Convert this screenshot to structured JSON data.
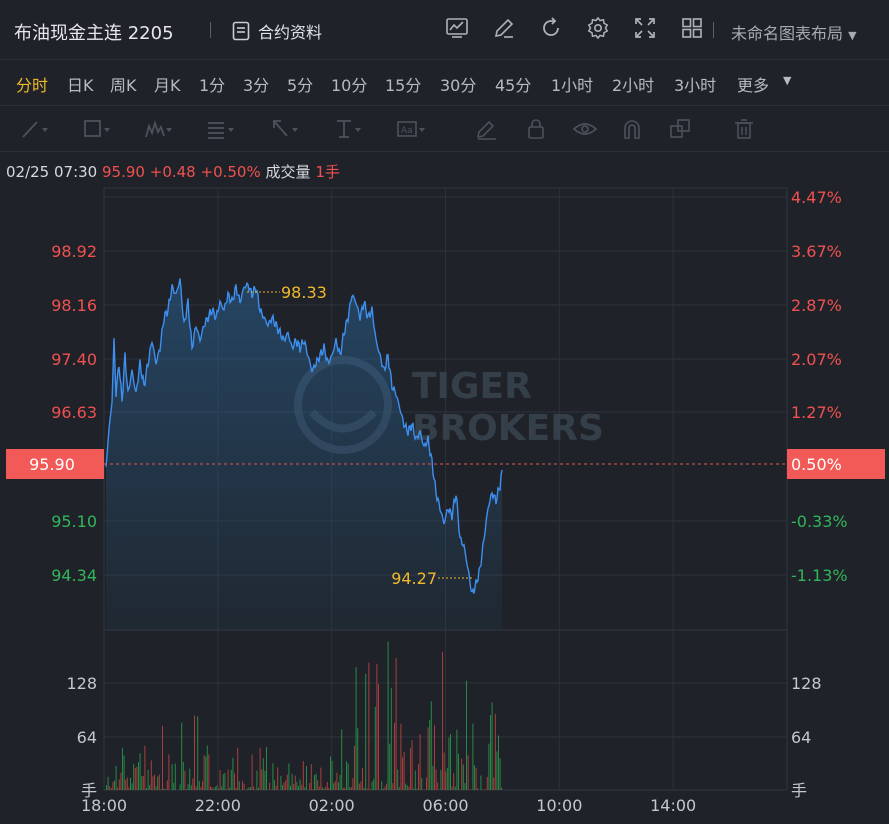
{
  "header": {
    "title": "布油现金主连 2205",
    "contract_label": "合约资料",
    "layout_label": "未命名图表布局",
    "icons": [
      "indicator-icon",
      "draw-icon",
      "refresh-icon",
      "settings-icon",
      "fullscreen-icon",
      "grid-layout-icon"
    ]
  },
  "periods": [
    "分时",
    "日K",
    "周K",
    "月K",
    "1分",
    "3分",
    "5分",
    "10分",
    "15分",
    "30分",
    "45分",
    "1小时",
    "2小时",
    "3小时",
    "更多"
  ],
  "active_period": "分时",
  "info": {
    "datetime": "02/25 07:30",
    "price": "95.90",
    "change": "+0.48",
    "change_pct": "+0.50%",
    "volume_label": "成交量",
    "volume": "1手"
  },
  "colors": {
    "up": "#f0504f",
    "down": "#33b55a",
    "line": "#3d8ff0",
    "accent": "#f0b92b",
    "bg": "#1f2329"
  },
  "watermark": [
    "TIGER",
    "BROKERS"
  ],
  "price_axis": {
    "left": [
      {
        "label": "98.92",
        "dir": "up"
      },
      {
        "label": "98.16",
        "dir": "up"
      },
      {
        "label": "97.40",
        "dir": "up"
      },
      {
        "label": "96.63",
        "dir": "up"
      },
      {
        "label": "95.10",
        "dir": "down"
      },
      {
        "label": "94.34",
        "dir": "down"
      }
    ],
    "right": [
      {
        "label": "4.47%",
        "dir": "up"
      },
      {
        "label": "3.67%",
        "dir": "up"
      },
      {
        "label": "2.87%",
        "dir": "up"
      },
      {
        "label": "2.07%",
        "dir": "up"
      },
      {
        "label": "1.27%",
        "dir": "up"
      },
      {
        "label": "-0.33%",
        "dir": "down"
      },
      {
        "label": "-1.13%",
        "dir": "down"
      }
    ],
    "current_left": "95.90",
    "current_right": "0.50%"
  },
  "annotations": {
    "high": "98.33",
    "low": "94.27"
  },
  "volume_axis": {
    "ticks": [
      "128",
      "64"
    ],
    "unit": "手"
  },
  "time_axis": [
    "18:00",
    "22:00",
    "02:00",
    "06:00",
    "10:00",
    "14:00"
  ],
  "chart_data": {
    "type": "line",
    "price_line": [
      [
        0,
        95.9
      ],
      [
        2,
        96.3
      ],
      [
        6,
        96.8
      ],
      [
        8,
        97.6
      ],
      [
        10,
        96.9
      ],
      [
        13,
        97.3
      ],
      [
        16,
        96.8
      ],
      [
        19,
        97.4
      ],
      [
        22,
        96.9
      ],
      [
        26,
        97.2
      ],
      [
        30,
        96.9
      ],
      [
        34,
        97.3
      ],
      [
        38,
        97.0
      ],
      [
        42,
        97.3
      ],
      [
        46,
        97.6
      ],
      [
        50,
        97.3
      ],
      [
        54,
        97.5
      ],
      [
        58,
        97.9
      ],
      [
        62,
        98.0
      ],
      [
        66,
        98.3
      ],
      [
        70,
        98.2
      ],
      [
        74,
        98.4
      ],
      [
        78,
        97.8
      ],
      [
        82,
        98.1
      ],
      [
        86,
        97.5
      ],
      [
        90,
        97.8
      ],
      [
        94,
        97.6
      ],
      [
        98,
        97.8
      ],
      [
        102,
        97.9
      ],
      [
        106,
        98.0
      ],
      [
        110,
        97.9
      ],
      [
        114,
        98.1
      ],
      [
        118,
        98.0
      ],
      [
        122,
        98.2
      ],
      [
        126,
        98.1
      ],
      [
        130,
        98.3
      ],
      [
        134,
        98.1
      ],
      [
        138,
        98.3
      ],
      [
        142,
        98.33
      ],
      [
        146,
        98.2
      ],
      [
        150,
        98.3
      ],
      [
        154,
        98.0
      ],
      [
        158,
        97.9
      ],
      [
        162,
        97.8
      ],
      [
        166,
        97.9
      ],
      [
        170,
        97.8
      ],
      [
        174,
        97.7
      ],
      [
        178,
        97.6
      ],
      [
        182,
        97.7
      ],
      [
        186,
        97.5
      ],
      [
        190,
        97.6
      ],
      [
        194,
        97.5
      ],
      [
        198,
        97.6
      ],
      [
        202,
        97.4
      ],
      [
        206,
        97.2
      ],
      [
        210,
        97.3
      ],
      [
        214,
        97.4
      ],
      [
        218,
        97.5
      ],
      [
        222,
        97.3
      ],
      [
        226,
        97.4
      ],
      [
        230,
        97.6
      ],
      [
        234,
        97.4
      ],
      [
        238,
        97.7
      ],
      [
        242,
        97.9
      ],
      [
        246,
        98.2
      ],
      [
        250,
        98.1
      ],
      [
        254,
        97.9
      ],
      [
        258,
        98.1
      ],
      [
        262,
        97.9
      ],
      [
        266,
        98.0
      ],
      [
        270,
        97.6
      ],
      [
        274,
        97.4
      ],
      [
        278,
        97.2
      ],
      [
        282,
        97.4
      ],
      [
        286,
        97.0
      ],
      [
        290,
        96.9
      ],
      [
        294,
        96.7
      ],
      [
        298,
        96.5
      ],
      [
        302,
        96.4
      ],
      [
        306,
        96.5
      ],
      [
        310,
        96.3
      ],
      [
        314,
        96.4
      ],
      [
        318,
        96.2
      ],
      [
        322,
        96.3
      ],
      [
        326,
        96.0
      ],
      [
        330,
        95.6
      ],
      [
        334,
        95.4
      ],
      [
        338,
        95.2
      ],
      [
        342,
        95.4
      ],
      [
        346,
        95.3
      ],
      [
        350,
        95.6
      ],
      [
        354,
        95.0
      ],
      [
        358,
        94.9
      ],
      [
        362,
        94.6
      ],
      [
        366,
        94.27
      ],
      [
        370,
        94.4
      ],
      [
        374,
        94.6
      ],
      [
        378,
        95.0
      ],
      [
        382,
        95.4
      ],
      [
        386,
        95.6
      ],
      [
        390,
        95.5
      ],
      [
        394,
        95.7
      ],
      [
        396,
        95.9
      ]
    ],
    "price_range": [
      93.8,
      99.6
    ],
    "current_price": 95.9,
    "high": 98.33,
    "low": 94.27,
    "x_total_minutes": 1440
  }
}
